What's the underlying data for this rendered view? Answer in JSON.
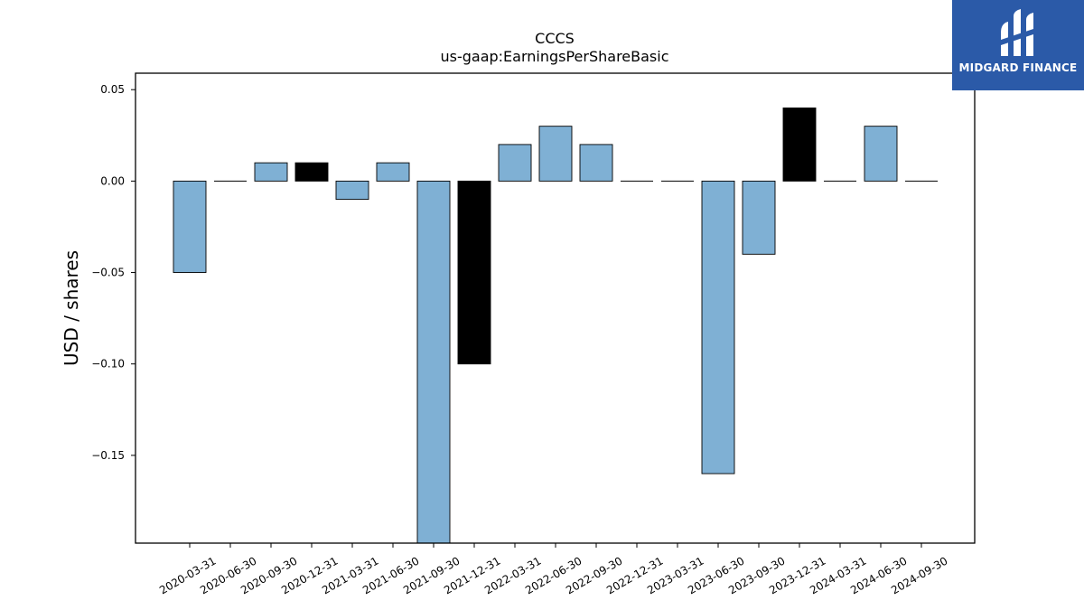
{
  "chart_data": {
    "type": "bar",
    "title": "CCCS",
    "subtitle": "us-gaap:EarningsPerShareBasic",
    "xlabel": "",
    "ylabel": "USD / shares",
    "categories": [
      "2020-03-31",
      "2020-06-30",
      "2020-09-30",
      "2020-12-31",
      "2021-03-31",
      "2021-06-30",
      "2021-09-30",
      "2021-12-31",
      "2022-03-31",
      "2022-06-30",
      "2022-09-30",
      "2022-12-31",
      "2023-03-31",
      "2023-06-30",
      "2023-09-30",
      "2023-12-31",
      "2024-03-31",
      "2024-06-30",
      "2024-09-30"
    ],
    "values": [
      -0.05,
      0.0,
      0.01,
      0.01,
      -0.01,
      0.01,
      -0.2,
      -0.1,
      0.02,
      0.03,
      0.02,
      0.0,
      0.0,
      -0.16,
      -0.04,
      0.04,
      0.0,
      0.03,
      0.0
    ],
    "highlighted": [
      false,
      false,
      false,
      true,
      false,
      false,
      false,
      true,
      false,
      false,
      false,
      false,
      false,
      false,
      false,
      true,
      false,
      false,
      false
    ],
    "ylim": [
      -0.198,
      0.059
    ],
    "yticks": [
      0.05,
      0.0,
      -0.05,
      -0.1,
      -0.15
    ],
    "ytick_labels": [
      "0.05",
      "0.00",
      "−0.05",
      "−0.10",
      "−0.15"
    ],
    "grid": false,
    "legend": "none",
    "colors": {
      "bar": "#7fb0d4",
      "highlight": "#000000",
      "edge": "#000000"
    }
  },
  "logo": {
    "text": "MIDGARD FINANCE",
    "background": "#2b5aa8",
    "icon": "midgard-logo-icon"
  }
}
